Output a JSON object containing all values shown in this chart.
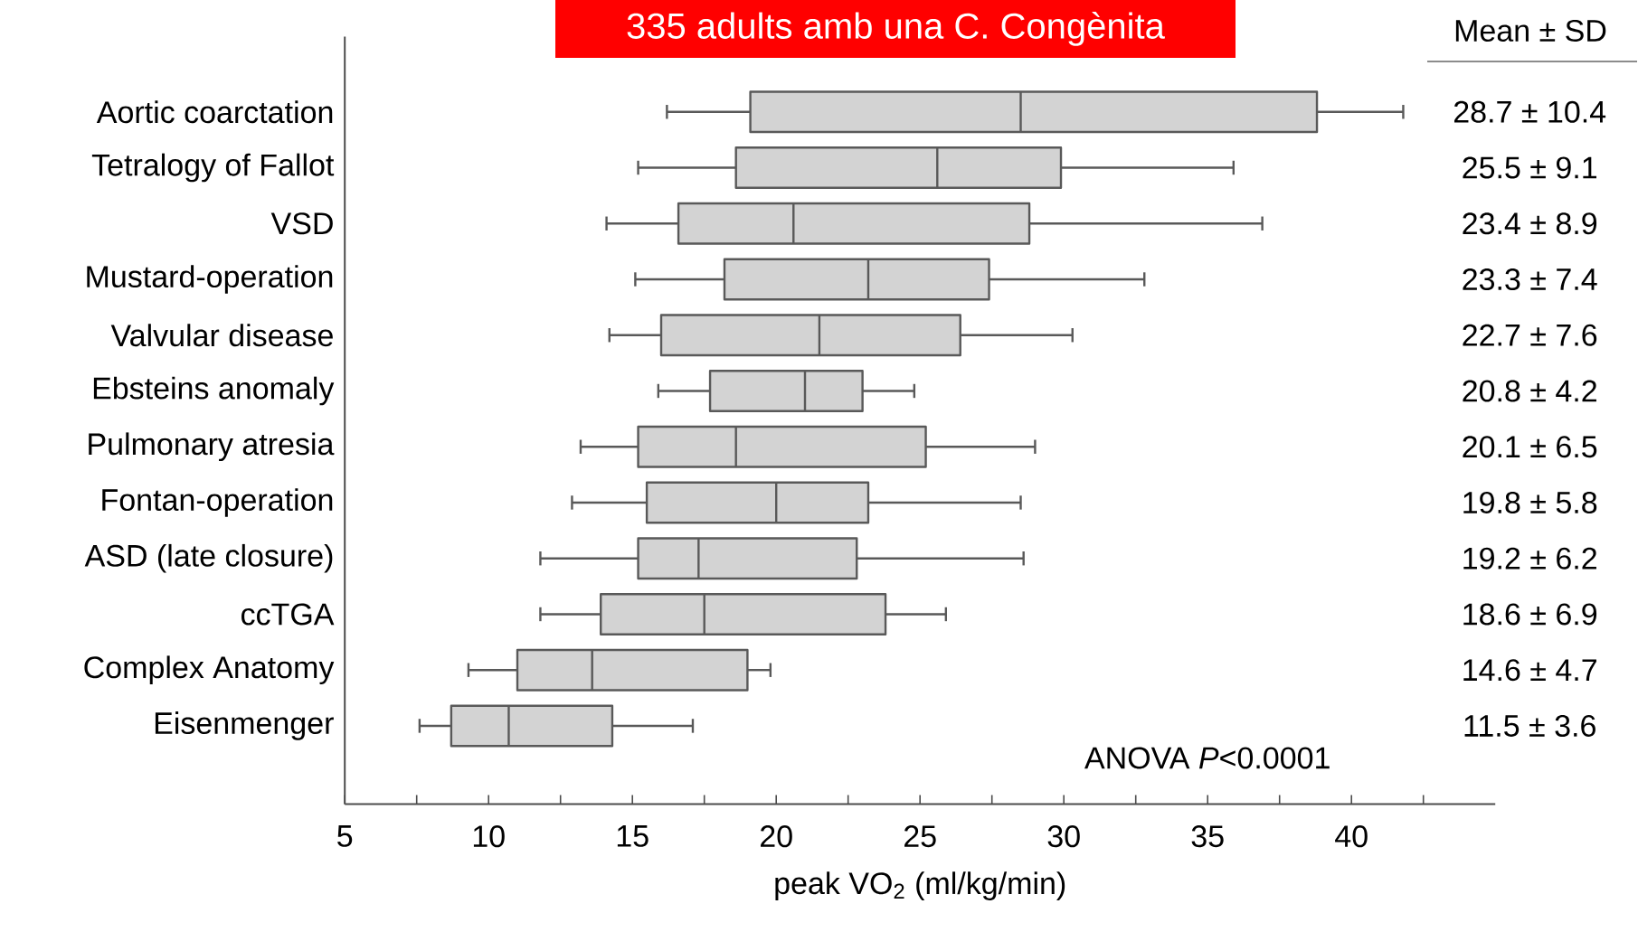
{
  "chart_data": {
    "type": "box",
    "orientation": "horizontal",
    "title": "335 adults amb una C. Congènita",
    "xlabel": "peak VO$_{2}$ (ml/kg/min)",
    "color": "#d3d3d3",
    "categories": [
      "Aortic coarctation",
      "Tetralogy of Fallot",
      "VSD",
      "Mustard-operation",
      "Valvular disease",
      "Ebsteins anomaly",
      "Pulmonary atresia",
      "Fontan-operation",
      "ASD (late closure)",
      "ccTGA",
      "Complex Anatomy",
      "Eisenmenger"
    ],
    "boxes": [
      {
        "low": 16.2,
        "q1": 19.1,
        "median": 28.5,
        "q3": 38.8,
        "high": 41.8
      },
      {
        "low": 15.2,
        "q1": 18.6,
        "median": 25.6,
        "q3": 29.9,
        "high": 35.9
      },
      {
        "low": 14.1,
        "q1": 16.6,
        "median": 20.6,
        "q3": 28.8,
        "high": 36.9
      },
      {
        "low": 15.1,
        "q1": 18.2,
        "median": 23.2,
        "q3": 27.4,
        "high": 32.8
      },
      {
        "low": 14.2,
        "q1": 16.0,
        "median": 21.5,
        "q3": 26.4,
        "high": 30.3
      },
      {
        "low": 15.9,
        "q1": 17.7,
        "median": 21.0,
        "q3": 23.0,
        "high": 24.8
      },
      {
        "low": 13.2,
        "q1": 15.2,
        "median": 18.6,
        "q3": 25.2,
        "high": 29.0
      },
      {
        "low": 12.9,
        "q1": 15.5,
        "median": 20.0,
        "q3": 23.2,
        "high": 28.5
      },
      {
        "low": 11.8,
        "q1": 15.2,
        "median": 17.3,
        "q3": 22.8,
        "high": 28.6
      },
      {
        "low": 11.8,
        "q1": 13.9,
        "median": 17.5,
        "q3": 23.8,
        "high": 25.9
      },
      {
        "low": 9.3,
        "q1": 11.0,
        "median": 13.6,
        "q3": 19.0,
        "high": 19.8
      },
      {
        "low": 7.6,
        "q1": 8.7,
        "median": 10.7,
        "q3": 14.3,
        "high": 17.1
      }
    ],
    "xlim": [
      5,
      45
    ],
    "xticks": [
      5,
      {
        "value": 7.5,
        "label": null
      },
      10,
      {
        "value": 12.5,
        "label": null
      },
      15,
      {
        "value": 17.5,
        "label": null
      },
      20,
      {
        "value": 22.5,
        "label": null
      },
      25,
      {
        "value": 27.5,
        "label": null
      },
      30,
      {
        "value": 32.5,
        "label": null
      },
      35,
      {
        "value": 37.5,
        "label": null
      },
      40,
      {
        "value": 42.5,
        "label": null
      }
    ],
    "grid": false,
    "annotations": [
      "Mean ± SD",
      "ANOVA *P*<0.0001",
      "28.7 ± 10.4",
      "25.5 ± 9.1",
      "23.4 ± 8.9",
      "23.3 ± 7.4",
      "22.7 ± 7.6",
      "20.8 ± 4.2",
      "20.1 ± 6.5",
      "19.8 ± 5.8",
      "19.2 ± 6.2",
      "18.6 ± 6.9",
      "14.6 ± 4.7",
      "11.5 ± 3.6"
    ]
  }
}
